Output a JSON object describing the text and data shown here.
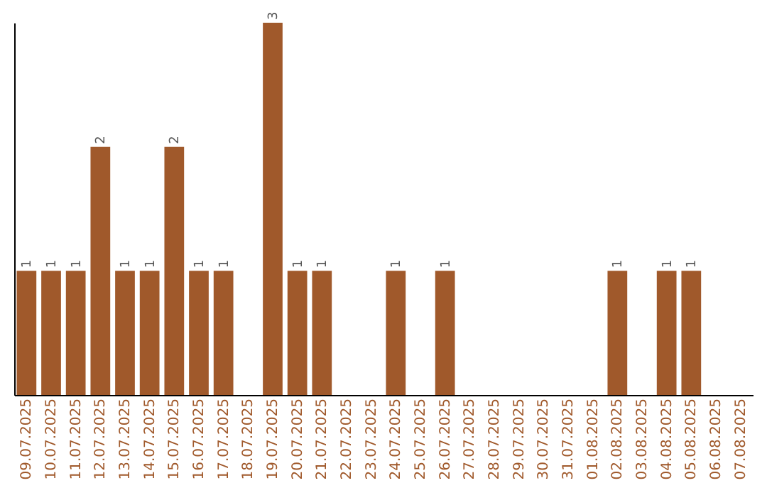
{
  "chart_data": {
    "type": "bar",
    "categories": [
      "09.07.2025",
      "10.07.2025",
      "11.07.2025",
      "12.07.2025",
      "13.07.2025",
      "14.07.2025",
      "15.07.2025",
      "16.07.2025",
      "17.07.2025",
      "18.07.2025",
      "19.07.2025",
      "20.07.2025",
      "21.07.2025",
      "22.07.2025",
      "23.07.2025",
      "24.07.2025",
      "25.07.2025",
      "26.07.2025",
      "27.07.2025",
      "28.07.2025",
      "29.07.2025",
      "30.07.2025",
      "31.07.2025",
      "01.08.2025",
      "02.08.2025",
      "03.08.2025",
      "04.08.2025",
      "05.08.2025",
      "06.08.2025",
      "07.08.2025"
    ],
    "values": [
      1,
      1,
      1,
      2,
      1,
      1,
      2,
      1,
      1,
      0,
      3,
      1,
      1,
      0,
      0,
      1,
      0,
      1,
      0,
      0,
      0,
      0,
      0,
      0,
      1,
      0,
      1,
      1,
      0,
      0
    ],
    "value_labels": [
      "1",
      "1",
      "1",
      "2",
      "1",
      "1",
      "2",
      "1",
      "1",
      null,
      "3",
      "1",
      "1",
      null,
      null,
      "1",
      null,
      "1",
      null,
      null,
      null,
      null,
      null,
      null,
      "1",
      null,
      "1",
      "1",
      null,
      null
    ],
    "color": "#a0592b",
    "tick_labels": "x",
    "grid": false
  }
}
